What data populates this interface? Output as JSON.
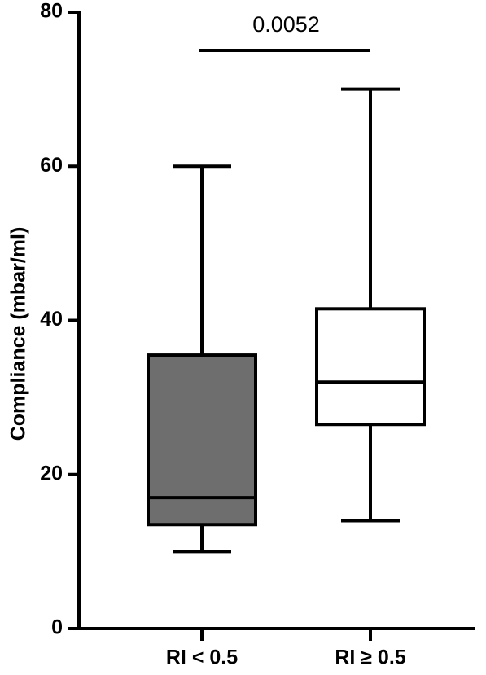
{
  "chart_data": {
    "type": "box",
    "y_label": "Compliance (mbar/ml)",
    "categories": [
      "RI < 0.5",
      "RI ≥ 0.5"
    ],
    "boxes": [
      {
        "min": 10,
        "q1": 13.5,
        "median": 17,
        "q3": 35.5,
        "max": 60,
        "color": "#6e6e6e"
      },
      {
        "min": 14,
        "q1": 26.5,
        "median": 32,
        "q3": 41.5,
        "max": 70,
        "color": "#ffffff"
      }
    ],
    "annotations": [
      {
        "text": "0.0052"
      }
    ],
    "ylim": [
      0,
      80
    ],
    "yticks": [
      0,
      20,
      40,
      60,
      80
    ],
    "grid": false
  }
}
